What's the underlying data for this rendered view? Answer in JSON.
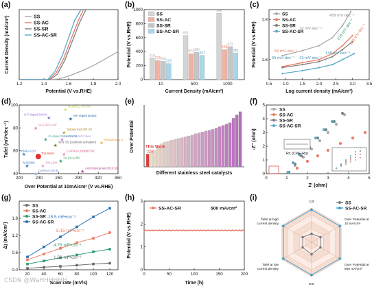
{
  "colors": {
    "SS": "#a9a9a9",
    "SS-AC": "#e97a63",
    "SS-SR": "#7e7e7e",
    "SS-AC-SR": "#5aa9c9",
    "dark": "#1a1a1a"
  },
  "panel_labels": {
    "a": "(a)",
    "b": "(b)",
    "c": "(c)",
    "d": "(d)",
    "e": "(e)",
    "f": "(f)",
    "g": "(g)",
    "h": "(h)",
    "i": "(i)"
  },
  "watermark": "CSDN @WaHHHHHH",
  "chart_data": [
    {
      "panel": "a",
      "type": "line",
      "xlabel": "Potential (V vs.RHE)",
      "ylabel": "Current Density (mA/cm²)",
      "xlim": [
        1.2,
        2.0
      ],
      "xticks": [
        "1.2",
        "1.4",
        "1.6",
        "1.8",
        "2.0"
      ],
      "ylim": [
        0,
        1
      ],
      "series": [
        {
          "name": "SS",
          "x": [
            1.2,
            1.45,
            1.52,
            1.6,
            1.7,
            1.8,
            1.9,
            2.0
          ],
          "y": [
            0,
            0,
            0.01,
            0.05,
            0.12,
            0.2,
            0.3,
            0.4
          ]
        },
        {
          "name": "SS-AC",
          "x": [
            1.2,
            1.44,
            1.5,
            1.56,
            1.62,
            1.68,
            1.72
          ],
          "y": [
            0,
            0,
            0.1,
            0.3,
            0.58,
            0.85,
            1.0
          ]
        },
        {
          "name": "SS-SR",
          "x": [
            1.2,
            1.45,
            1.51,
            1.57,
            1.63,
            1.69,
            1.74
          ],
          "y": [
            0,
            0,
            0.08,
            0.28,
            0.55,
            0.82,
            1.0
          ]
        },
        {
          "name": "SS-AC-SR",
          "x": [
            1.2,
            1.43,
            1.49,
            1.55,
            1.6,
            1.65,
            1.7
          ],
          "y": [
            0,
            0,
            0.12,
            0.35,
            0.6,
            0.85,
            1.0
          ]
        }
      ]
    },
    {
      "panel": "b",
      "type": "bar",
      "xlabel": "Current Density (mA/cm²)",
      "ylabel": "Potential (V vs.RHE)",
      "categories": [
        "10",
        "500",
        "1000"
      ],
      "ylim": [
        0,
        1000
      ],
      "yticks": [
        "0",
        "200",
        "400",
        "600",
        "800",
        "1000"
      ],
      "series": [
        {
          "name": "SS",
          "values": [
            310,
            631,
            949
          ],
          "labels": [
            "310",
            "631",
            "949"
          ]
        },
        {
          "name": "SS-AC",
          "values": [
            275,
            371,
            429
          ],
          "labels": [
            "275",
            "371",
            "429"
          ]
        },
        {
          "name": "SS-SR",
          "values": [
            260,
            390,
            473
          ],
          "labels": [
            "260",
            "390",
            "473"
          ]
        },
        {
          "name": "SS-AC-SR",
          "values": [
            229,
            347,
            382
          ],
          "labels": [
            "229",
            "347",
            "382"
          ]
        }
      ]
    },
    {
      "panel": "c",
      "type": "line",
      "xlabel": "Log current density (mA/cm²)",
      "ylabel": "Potential (V vs.RHE)",
      "xlim": [
        0.5,
        3.5
      ],
      "xticks": [
        "0.5",
        "1.0",
        "1.5",
        "2.0",
        "2.5",
        "3.0",
        "3.5"
      ],
      "ylim": [
        1.5,
        1.85
      ],
      "yticks": [
        "1.6",
        "1.8"
      ],
      "annotations": [
        "459 mV·dec⁻¹",
        "73 mV·dec⁻¹",
        "218 mV·dec⁻¹",
        "203 mV·dec⁻¹",
        "59 mV·dec⁻¹",
        "55 mV·dec⁻¹",
        "43 mV·dec⁻¹",
        "135 mV·dec⁻¹"
      ],
      "series": [
        {
          "name": "SS",
          "x": [
            0.9,
            1.5,
            2.0,
            2.4,
            2.7,
            2.95
          ],
          "y": [
            1.62,
            1.645,
            1.67,
            1.71,
            1.77,
            1.84
          ]
        },
        {
          "name": "SS-AC",
          "x": [
            0.9,
            1.5,
            2.0,
            2.4,
            2.7,
            3.0
          ],
          "y": [
            1.565,
            1.585,
            1.6,
            1.63,
            1.67,
            1.72
          ]
        },
        {
          "name": "SS-SR",
          "x": [
            0.9,
            1.5,
            2.0,
            2.4,
            2.7,
            3.0
          ],
          "y": [
            1.56,
            1.575,
            1.59,
            1.615,
            1.65,
            1.69
          ]
        },
        {
          "name": "SS-AC-SR",
          "x": [
            0.9,
            1.5,
            2.0,
            2.4,
            2.7,
            3.05
          ],
          "y": [
            1.53,
            1.545,
            1.56,
            1.575,
            1.6,
            1.63
          ]
        }
      ]
    },
    {
      "panel": "d",
      "type": "scatter",
      "xlabel": "Over Potential at 10mA/cm² (V vs.RHE)",
      "ylabel": "Tafel (mV•dec⁻¹)",
      "xlim": [
        200,
        350
      ],
      "xticks": [
        "200",
        "230",
        "260",
        "290",
        "320",
        "350"
      ],
      "ylim": [
        40,
        100
      ],
      "yticks": [
        "40",
        "60",
        "80",
        "100"
      ],
      "points": [
        {
          "label": "Ni₃(NO₃)₂-OH-SS",
          "x": 270,
          "y": 96
        },
        {
          "label": "N-P doped 304SS",
          "x": 245,
          "y": 89
        },
        {
          "label": "N-P doped 304SS",
          "x": 278,
          "y": 88
        },
        {
          "label": "Ni₃S₂/NiFe-MF",
          "x": 225,
          "y": 80
        },
        {
          "label": "Sulphurized 304 SS",
          "x": 268,
          "y": 76
        },
        {
          "label": "Cr-doped FeNi-P/NCN",
          "x": 240,
          "y": 70
        },
        {
          "label": "Anodised-NiO2 steel",
          "x": 265,
          "y": 70
        },
        {
          "label": "Phosphating S235",
          "x": 325,
          "y": 67
        },
        {
          "label": "316L SS (Cathodic activation)",
          "x": 255,
          "y": 65
        },
        {
          "label": "SnNiFe-LDH",
          "x": 207,
          "y": 57
        },
        {
          "label": "This Work",
          "x": 229,
          "y": 55
        },
        {
          "label": "Co-P/Fe-LDH@FCNT",
          "x": 268,
          "y": 57
        },
        {
          "label": "Fe-Co₂S₄/NF",
          "x": 263,
          "y": 51
        },
        {
          "label": "NASSNS",
          "x": 212,
          "y": 47
        },
        {
          "label": "PNi-LDH",
          "x": 236,
          "y": 47
        },
        {
          "label": "Acid impregnated 316 SS",
          "x": 296,
          "y": 42
        },
        {
          "label": "CM/Fe₃O₄/Ni-B",
          "x": 225,
          "y": 40
        }
      ]
    },
    {
      "panel": "e",
      "type": "bar",
      "xlabel": "Different stainless steel catalysts",
      "ylabel": "Over Potential",
      "highlight_label": "This Work",
      "highlight_value": "229",
      "values": [
        229,
        234,
        238,
        245,
        252,
        256,
        258,
        260,
        262,
        264,
        266,
        268,
        270,
        272,
        275,
        277,
        279,
        281,
        283,
        285,
        288,
        291,
        294,
        297,
        300,
        310,
        318,
        325
      ]
    },
    {
      "panel": "f",
      "type": "scatter",
      "xlabel": "Z' (ohm)",
      "ylabel": "-Z\" (ohm)",
      "xlim": [
        0,
        5
      ],
      "xticks": [
        "0",
        "1",
        "2",
        "3",
        "4",
        "5"
      ],
      "ylim": [
        0,
        5
      ],
      "yticks": [
        "0",
        "1",
        "2",
        "3",
        "4",
        "5"
      ],
      "circuit_label": "Rs (CPE-Rp)",
      "series": [
        {
          "name": "SS",
          "x": [
            1.1,
            1.4,
            1.8,
            2.2,
            2.6,
            3.0,
            3.4,
            3.8
          ],
          "y": [
            0.1,
            0.6,
            1.2,
            1.8,
            2.4,
            3.0,
            3.6,
            4.3
          ]
        },
        {
          "name": "SS-AC",
          "x": [
            1.1,
            1.5,
            2.0,
            2.5,
            3.0,
            3.6,
            4.2,
            4.8
          ],
          "y": [
            0.1,
            0.4,
            0.9,
            1.3,
            1.7,
            2.2,
            2.6,
            3.0
          ]
        },
        {
          "name": "SS-SR",
          "x": [
            1.1,
            1.4,
            1.7,
            2.1,
            2.5,
            2.9,
            3.3,
            3.7
          ],
          "y": [
            0.1,
            0.7,
            1.3,
            1.9,
            2.6,
            3.2,
            3.8,
            4.4
          ]
        },
        {
          "name": "SS-AC-SR",
          "x": [
            1.05,
            1.3,
            1.6,
            2.0,
            2.4,
            2.8,
            3.2
          ],
          "y": [
            0.1,
            0.8,
            1.4,
            2.0,
            2.6,
            3.2,
            3.8
          ]
        }
      ]
    },
    {
      "panel": "g",
      "type": "scatter",
      "xlabel": "Scan rate (mV/s)",
      "ylabel": "Δj (mA/cm²)",
      "xlim": [
        10,
        130
      ],
      "xticks": [
        "20",
        "40",
        "60",
        "80",
        "100",
        "120"
      ],
      "ylim": [
        0,
        2.4
      ],
      "yticks": [
        "0.0",
        "0.6",
        "1.2",
        "1.8"
      ],
      "annotations": [
        "15.5 mF•cm⁻²",
        "8.15 mF•cm⁻²",
        "4.76 mF•cm⁻²",
        "1.56 mF•cm⁻²"
      ],
      "series": [
        {
          "name": "SS",
          "x": [
            20,
            40,
            60,
            80,
            100,
            120
          ],
          "y": [
            0.05,
            0.09,
            0.12,
            0.16,
            0.2,
            0.23
          ]
        },
        {
          "name": "SS-AC",
          "x": [
            20,
            40,
            60,
            80,
            100,
            120
          ],
          "y": [
            0.35,
            0.55,
            0.75,
            0.95,
            1.1,
            1.3
          ]
        },
        {
          "name": "SS-SR",
          "x": [
            20,
            40,
            60,
            80,
            100,
            120
          ],
          "y": [
            0.2,
            0.31,
            0.42,
            0.52,
            0.63,
            0.72
          ]
        },
        {
          "name": "SS-AC-SR",
          "x": [
            20,
            40,
            60,
            80,
            100,
            120
          ],
          "y": [
            0.45,
            0.8,
            1.15,
            1.5,
            1.85,
            2.15
          ]
        }
      ]
    },
    {
      "panel": "h",
      "type": "line",
      "xlabel": "Time (h)",
      "ylabel": "Potential (V vs.RHE)",
      "xlim": [
        0,
        200
      ],
      "xticks": [
        "0",
        "50",
        "100",
        "150",
        "200"
      ],
      "ylim": [
        0,
        3
      ],
      "yticks": [
        "0",
        "1",
        "2",
        "3"
      ],
      "legend": "SS-AC-SR",
      "condition": "500 mA/cm²",
      "series": [
        {
          "name": "SS-AC-SR",
          "x": [
            0,
            50,
            100,
            150,
            200
          ],
          "y": [
            1.72,
            1.73,
            1.72,
            1.74,
            1.73
          ]
        }
      ]
    },
    {
      "panel": "i",
      "type": "radar",
      "axes": [
        "Cdl",
        "Over Potential at 10 mA/cm²",
        "Over Potential at 500 mA/cm²",
        "EIS",
        "Tafel at low current density",
        "Tafel at high current density"
      ],
      "series": [
        {
          "name": "SS",
          "values": [
            0.25,
            0.3,
            0.3,
            0.35,
            0.3,
            0.3
          ]
        },
        {
          "name": "SS-AC-SR",
          "values": [
            0.95,
            0.95,
            0.95,
            0.95,
            0.95,
            0.95
          ]
        }
      ]
    }
  ]
}
